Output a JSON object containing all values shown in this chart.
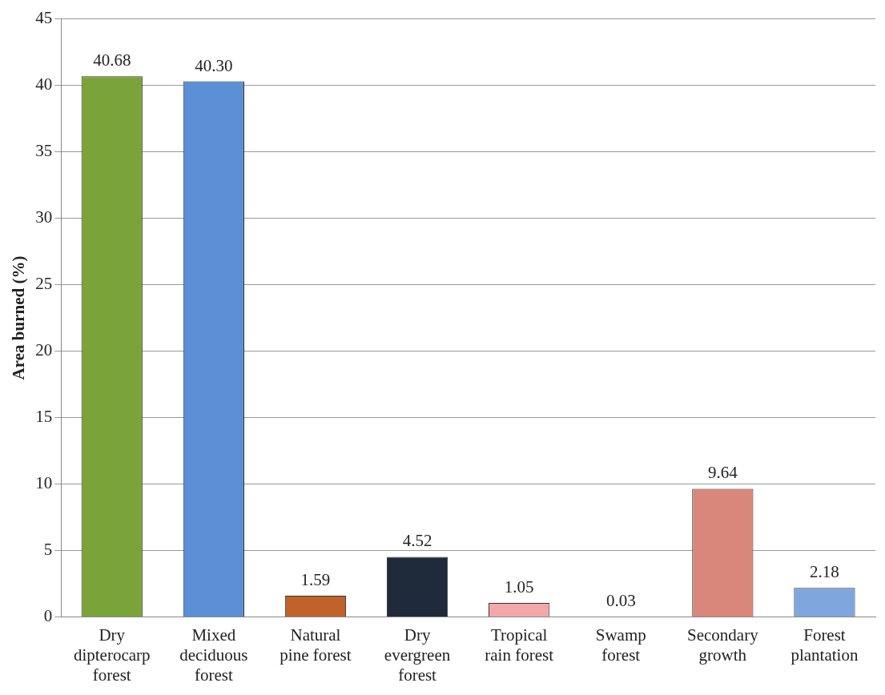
{
  "chart_data": {
    "type": "bar",
    "ylabel": "Area burned (%)",
    "categories": [
      "Dry dipterocarp forest",
      "Mixed deciduous forest",
      "Natural pine forest",
      "Dry evergreen forest",
      "Tropical rain forest",
      "Swamp forest",
      "Secondary growth",
      "Forest plantation"
    ],
    "values": [
      40.68,
      40.3,
      1.59,
      4.52,
      1.05,
      0.03,
      9.64,
      2.18
    ],
    "colors": [
      "#7aa33a",
      "#5b8fd6",
      "#c0622a",
      "#1f2a3a",
      "#f2a8a8",
      "#9a9a9a",
      "#d9877a",
      "#7fa6dd"
    ],
    "ylim": [
      0,
      45
    ],
    "yticks": [
      0,
      5,
      10,
      15,
      20,
      25,
      30,
      35,
      40,
      45
    ],
    "value_labels": [
      "40.68",
      "40.30",
      "1.59",
      "4.52",
      "1.05",
      "0.03",
      "9.64",
      "2.18"
    ],
    "grid": "y"
  }
}
